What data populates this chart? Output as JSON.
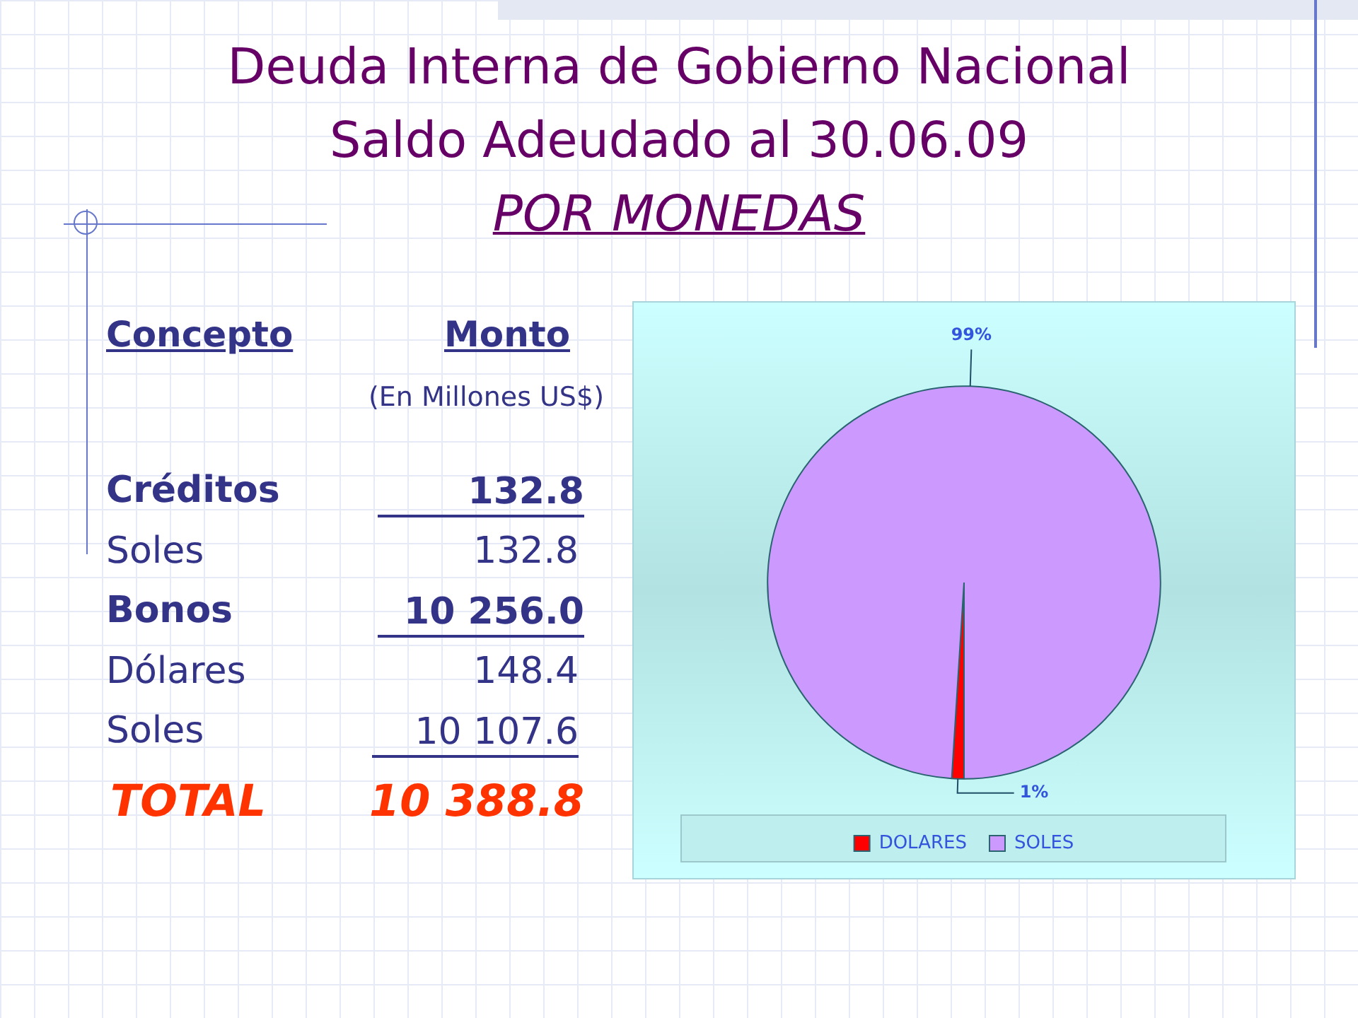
{
  "chart_data": [
    {
      "type": "other",
      "title": "Deuda Interna de Gobierno Nacional\nSaldo Adeudado al 30.06.09",
      "subtitle": "POR MONEDAS",
      "annotations": [
        "Concepto",
        "Monto",
        "(En Millones US$)",
        "Créditos",
        "132.8",
        "Soles",
        "132.8",
        "Bonos",
        "10 256.0",
        "Dólares",
        "148.4",
        "Soles",
        "10 107.6",
        "TOTAL",
        "10 388.8"
      ]
    },
    {
      "type": "pie",
      "categories": [
        "DOLARES",
        "SOLES"
      ],
      "values": [
        1,
        99
      ],
      "colors": [
        "#ff0000",
        "#cc99ff"
      ],
      "value_labels": [
        "1%",
        "99%"
      ],
      "legend": "bottom"
    }
  ]
}
